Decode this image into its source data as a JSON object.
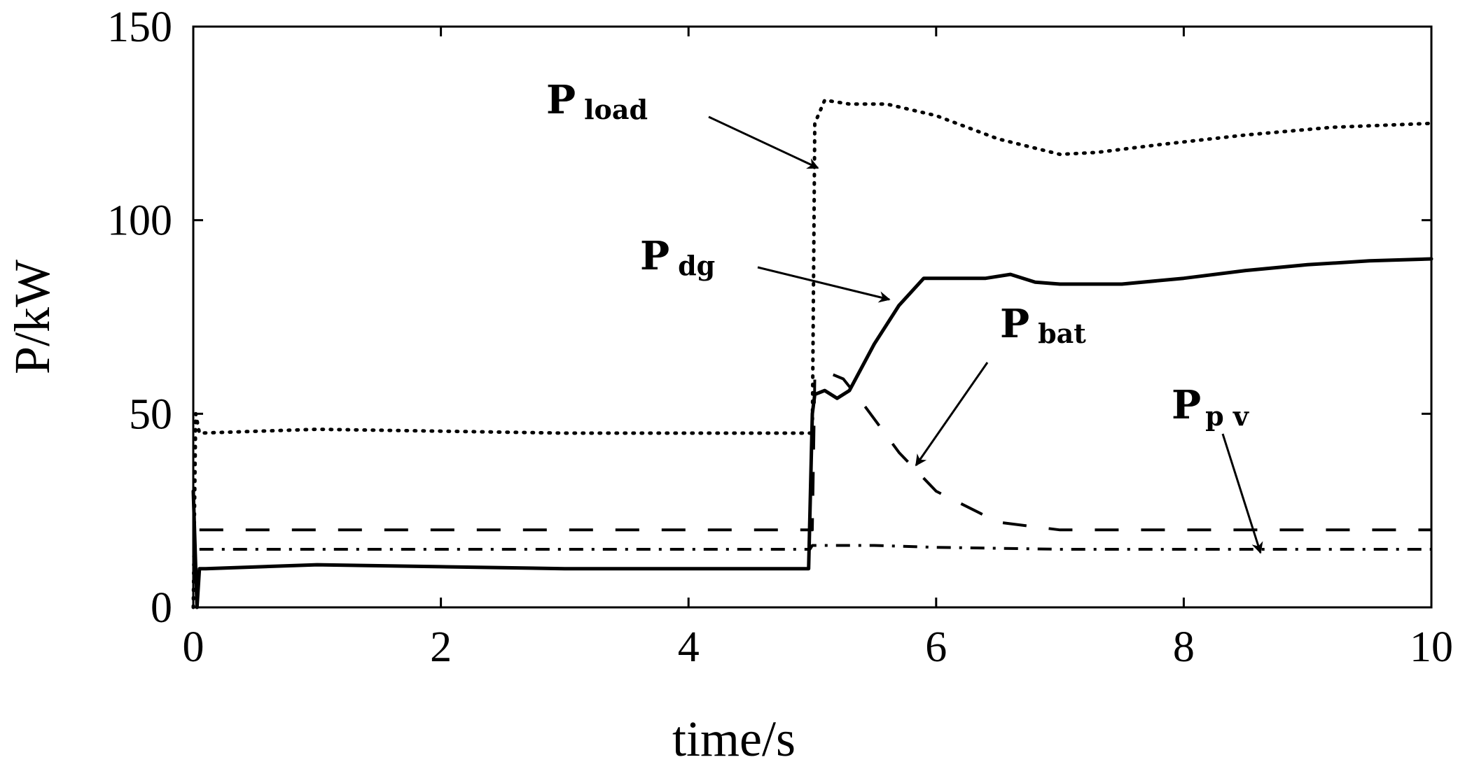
{
  "chart_data": {
    "type": "line",
    "title": "",
    "xlabel": "time/s",
    "ylabel": "P/kW",
    "xlim": [
      0,
      10
    ],
    "ylim": [
      0,
      150
    ],
    "xticks": [
      "0",
      "2",
      "4",
      "6",
      "8",
      "10"
    ],
    "yticks": [
      "0",
      "50",
      "100",
      "150"
    ],
    "grid": false,
    "legend": "none",
    "series": [
      {
        "key": "load",
        "style": "dotted",
        "x": [
          0,
          0.02,
          0.05,
          1,
          2,
          3,
          4,
          4.98,
          5.0,
          5.02,
          5.1,
          5.3,
          5.6,
          6.0,
          6.5,
          7.0,
          7.3,
          7.8,
          8.5,
          9.2,
          10
        ],
        "y": [
          0,
          50,
          45,
          46,
          45.5,
          45,
          45,
          45,
          45,
          125,
          131,
          130,
          130,
          127,
          121,
          117,
          117.5,
          119.5,
          122,
          124,
          125
        ]
      },
      {
        "key": "dg",
        "style": "solid",
        "x": [
          0,
          0.03,
          0.05,
          0.1,
          1,
          2,
          3,
          4,
          4.97,
          5.0,
          5.02,
          5.1,
          5.2,
          5.3,
          5.5,
          5.7,
          5.9,
          6.1,
          6.4,
          6.6,
          6.8,
          7.0,
          7.5,
          8.0,
          8.5,
          9.0,
          9.5,
          10
        ],
        "y": [
          30,
          0,
          10,
          10,
          11,
          10.5,
          10,
          10,
          10,
          50,
          55,
          56,
          54,
          56,
          68,
          78,
          85,
          85,
          85,
          86,
          84,
          83.5,
          83.5,
          85,
          87,
          88.5,
          89.5,
          90
        ]
      },
      {
        "key": "bat",
        "style": "long-dash",
        "x": [
          0.05,
          1,
          2,
          3,
          4,
          4.98,
          5.0,
          5.02,
          5.1,
          5.25,
          5.4,
          5.7,
          6.0,
          6.5,
          7.0,
          8.0,
          9.0,
          10
        ],
        "y": [
          20,
          20,
          20,
          20,
          20,
          20,
          20,
          59,
          61,
          59,
          53,
          40,
          30,
          22,
          20,
          20,
          20,
          20
        ]
      },
      {
        "key": "pv",
        "style": "dash-dot",
        "x": [
          0.05,
          1,
          2,
          3,
          4,
          4.98,
          5.0,
          5.5,
          6,
          7,
          8,
          9,
          10
        ],
        "y": [
          15,
          15,
          15,
          15,
          15,
          15,
          16,
          16,
          15.5,
          15,
          15,
          15,
          15
        ]
      }
    ],
    "annotations": [
      {
        "key": "load",
        "label": "P",
        "sub": "load"
      },
      {
        "key": "dg",
        "label": "P",
        "sub": "dg"
      },
      {
        "key": "bat",
        "label": "P",
        "sub": "bat"
      },
      {
        "key": "pv",
        "label": "P",
        "sub": "p v"
      }
    ]
  }
}
